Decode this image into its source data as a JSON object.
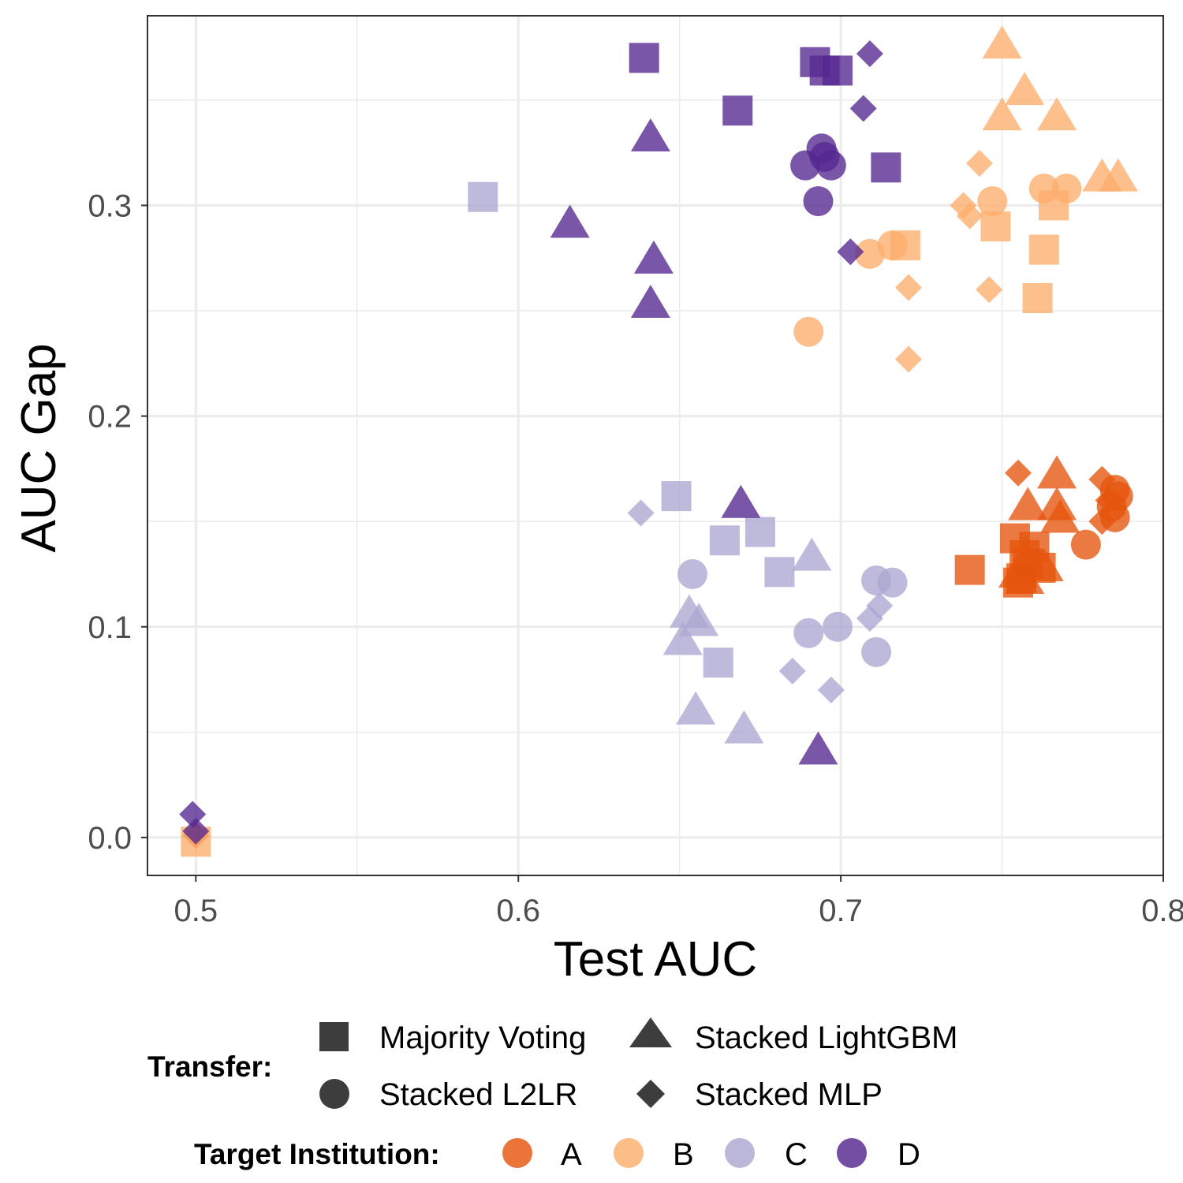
{
  "chart_data": {
    "type": "scatter",
    "xlabel": "Test AUC",
    "ylabel": "AUC Gap",
    "xlim": [
      0.485,
      0.8
    ],
    "ylim": [
      -0.018,
      0.39
    ],
    "x_ticks": [
      0.5,
      0.6,
      0.7,
      0.8
    ],
    "x_tick_labels": [
      "0.5",
      "0.6",
      "0.7",
      "0.8"
    ],
    "y_ticks": [
      0.0,
      0.1,
      0.2,
      0.3
    ],
    "y_tick_labels": [
      "0.0",
      "0.1",
      "0.2",
      "0.3"
    ],
    "x_minor_ticks": [
      0.55,
      0.65,
      0.75
    ],
    "y_minor_ticks": [
      0.05,
      0.15,
      0.25,
      0.35
    ],
    "grid": true,
    "legend_position": "bottom",
    "legend": {
      "transfer_title": "Transfer:",
      "transfer_items": [
        {
          "label": "Majority Voting",
          "shape": "square"
        },
        {
          "label": "Stacked LightGBM",
          "shape": "triangle"
        },
        {
          "label": "Stacked L2LR",
          "shape": "circle"
        },
        {
          "label": "Stacked MLP",
          "shape": "diamond"
        }
      ],
      "institution_title": "Target Institution:",
      "institution_items": [
        {
          "label": "A",
          "color": "#e6550d"
        },
        {
          "label": "B",
          "color": "#fdae6b"
        },
        {
          "label": "C",
          "color": "#aba7d1"
        },
        {
          "label": "D",
          "color": "#54278f"
        }
      ]
    },
    "series": [
      {
        "institution": "A",
        "transfer": "Majority Voting",
        "color": "#e6550d",
        "shape": "square",
        "points": [
          [
            0.74,
            0.127
          ],
          [
            0.754,
            0.142
          ],
          [
            0.757,
            0.134
          ],
          [
            0.76,
            0.138
          ],
          [
            0.756,
            0.123
          ],
          [
            0.762,
            0.128
          ],
          [
            0.755,
            0.121
          ],
          [
            0.758,
            0.13
          ]
        ]
      },
      {
        "institution": "A",
        "transfer": "Stacked LightGBM",
        "color": "#e6550d",
        "shape": "triangle",
        "points": [
          [
            0.767,
            0.172
          ],
          [
            0.758,
            0.157
          ],
          [
            0.767,
            0.157
          ],
          [
            0.768,
            0.151
          ],
          [
            0.763,
            0.128
          ],
          [
            0.757,
            0.122
          ],
          [
            0.755,
            0.125
          ]
        ]
      },
      {
        "institution": "A",
        "transfer": "Stacked L2LR",
        "color": "#e6550d",
        "shape": "circle",
        "points": [
          [
            0.776,
            0.139
          ],
          [
            0.785,
            0.165
          ],
          [
            0.786,
            0.162
          ],
          [
            0.784,
            0.157
          ],
          [
            0.785,
            0.152
          ]
        ]
      },
      {
        "institution": "A",
        "transfer": "Stacked MLP",
        "color": "#e6550d",
        "shape": "diamond",
        "points": [
          [
            0.755,
            0.173
          ],
          [
            0.781,
            0.17
          ],
          [
            0.783,
            0.16
          ],
          [
            0.781,
            0.15
          ],
          [
            0.5,
            0.001
          ]
        ]
      },
      {
        "institution": "B",
        "transfer": "Majority Voting",
        "color": "#fdae6b",
        "shape": "square",
        "points": [
          [
            0.72,
            0.281
          ],
          [
            0.748,
            0.29
          ],
          [
            0.766,
            0.3
          ],
          [
            0.763,
            0.279
          ],
          [
            0.761,
            0.256
          ],
          [
            0.5,
            -0.002
          ]
        ]
      },
      {
        "institution": "B",
        "transfer": "Stacked LightGBM",
        "color": "#fdae6b",
        "shape": "triangle",
        "points": [
          [
            0.75,
            0.376
          ],
          [
            0.757,
            0.354
          ],
          [
            0.75,
            0.342
          ],
          [
            0.767,
            0.342
          ],
          [
            0.781,
            0.313
          ],
          [
            0.786,
            0.313
          ]
        ]
      },
      {
        "institution": "B",
        "transfer": "Stacked L2LR",
        "color": "#fdae6b",
        "shape": "circle",
        "points": [
          [
            0.69,
            0.24
          ],
          [
            0.709,
            0.277
          ],
          [
            0.716,
            0.281
          ],
          [
            0.747,
            0.302
          ],
          [
            0.763,
            0.308
          ],
          [
            0.77,
            0.308
          ]
        ]
      },
      {
        "institution": "B",
        "transfer": "Stacked MLP",
        "color": "#fdae6b",
        "shape": "diamond",
        "points": [
          [
            0.743,
            0.32
          ],
          [
            0.738,
            0.3
          ],
          [
            0.74,
            0.295
          ],
          [
            0.721,
            0.261
          ],
          [
            0.746,
            0.26
          ],
          [
            0.721,
            0.227
          ]
        ]
      },
      {
        "institution": "C",
        "transfer": "Majority Voting",
        "color": "#aba7d1",
        "shape": "square",
        "points": [
          [
            0.589,
            0.304
          ],
          [
            0.649,
            0.162
          ],
          [
            0.664,
            0.141
          ],
          [
            0.675,
            0.145
          ],
          [
            0.681,
            0.126
          ],
          [
            0.662,
            0.083
          ]
        ]
      },
      {
        "institution": "C",
        "transfer": "Stacked LightGBM",
        "color": "#aba7d1",
        "shape": "triangle",
        "points": [
          [
            0.691,
            0.133
          ],
          [
            0.653,
            0.106
          ],
          [
            0.656,
            0.102
          ],
          [
            0.651,
            0.093
          ],
          [
            0.655,
            0.06
          ],
          [
            0.67,
            0.051
          ]
        ]
      },
      {
        "institution": "C",
        "transfer": "Stacked L2LR",
        "color": "#aba7d1",
        "shape": "circle",
        "points": [
          [
            0.654,
            0.125
          ],
          [
            0.711,
            0.122
          ],
          [
            0.716,
            0.121
          ],
          [
            0.69,
            0.097
          ],
          [
            0.699,
            0.1
          ],
          [
            0.711,
            0.088
          ]
        ]
      },
      {
        "institution": "C",
        "transfer": "Stacked MLP",
        "color": "#aba7d1",
        "shape": "diamond",
        "points": [
          [
            0.638,
            0.154
          ],
          [
            0.712,
            0.11
          ],
          [
            0.709,
            0.104
          ],
          [
            0.685,
            0.079
          ],
          [
            0.697,
            0.07
          ]
        ]
      },
      {
        "institution": "D",
        "transfer": "Majority Voting",
        "color": "#54278f",
        "shape": "square",
        "points": [
          [
            0.639,
            0.37
          ],
          [
            0.692,
            0.368
          ],
          [
            0.695,
            0.364
          ],
          [
            0.699,
            0.364
          ],
          [
            0.668,
            0.345
          ],
          [
            0.714,
            0.318
          ]
        ]
      },
      {
        "institution": "D",
        "transfer": "Stacked LightGBM",
        "color": "#54278f",
        "shape": "triangle",
        "points": [
          [
            0.641,
            0.332
          ],
          [
            0.616,
            0.291
          ],
          [
            0.642,
            0.274
          ],
          [
            0.641,
            0.253
          ],
          [
            0.669,
            0.158
          ],
          [
            0.693,
            0.041
          ]
        ]
      },
      {
        "institution": "D",
        "transfer": "Stacked L2LR",
        "color": "#54278f",
        "shape": "circle",
        "points": [
          [
            0.694,
            0.327
          ],
          [
            0.695,
            0.323
          ],
          [
            0.689,
            0.319
          ],
          [
            0.697,
            0.319
          ],
          [
            0.693,
            0.302
          ]
        ]
      },
      {
        "institution": "D",
        "transfer": "Stacked MLP",
        "color": "#54278f",
        "shape": "diamond",
        "points": [
          [
            0.709,
            0.372
          ],
          [
            0.707,
            0.346
          ],
          [
            0.703,
            0.278
          ],
          [
            0.499,
            0.011
          ],
          [
            0.5,
            0.003
          ]
        ]
      }
    ]
  }
}
